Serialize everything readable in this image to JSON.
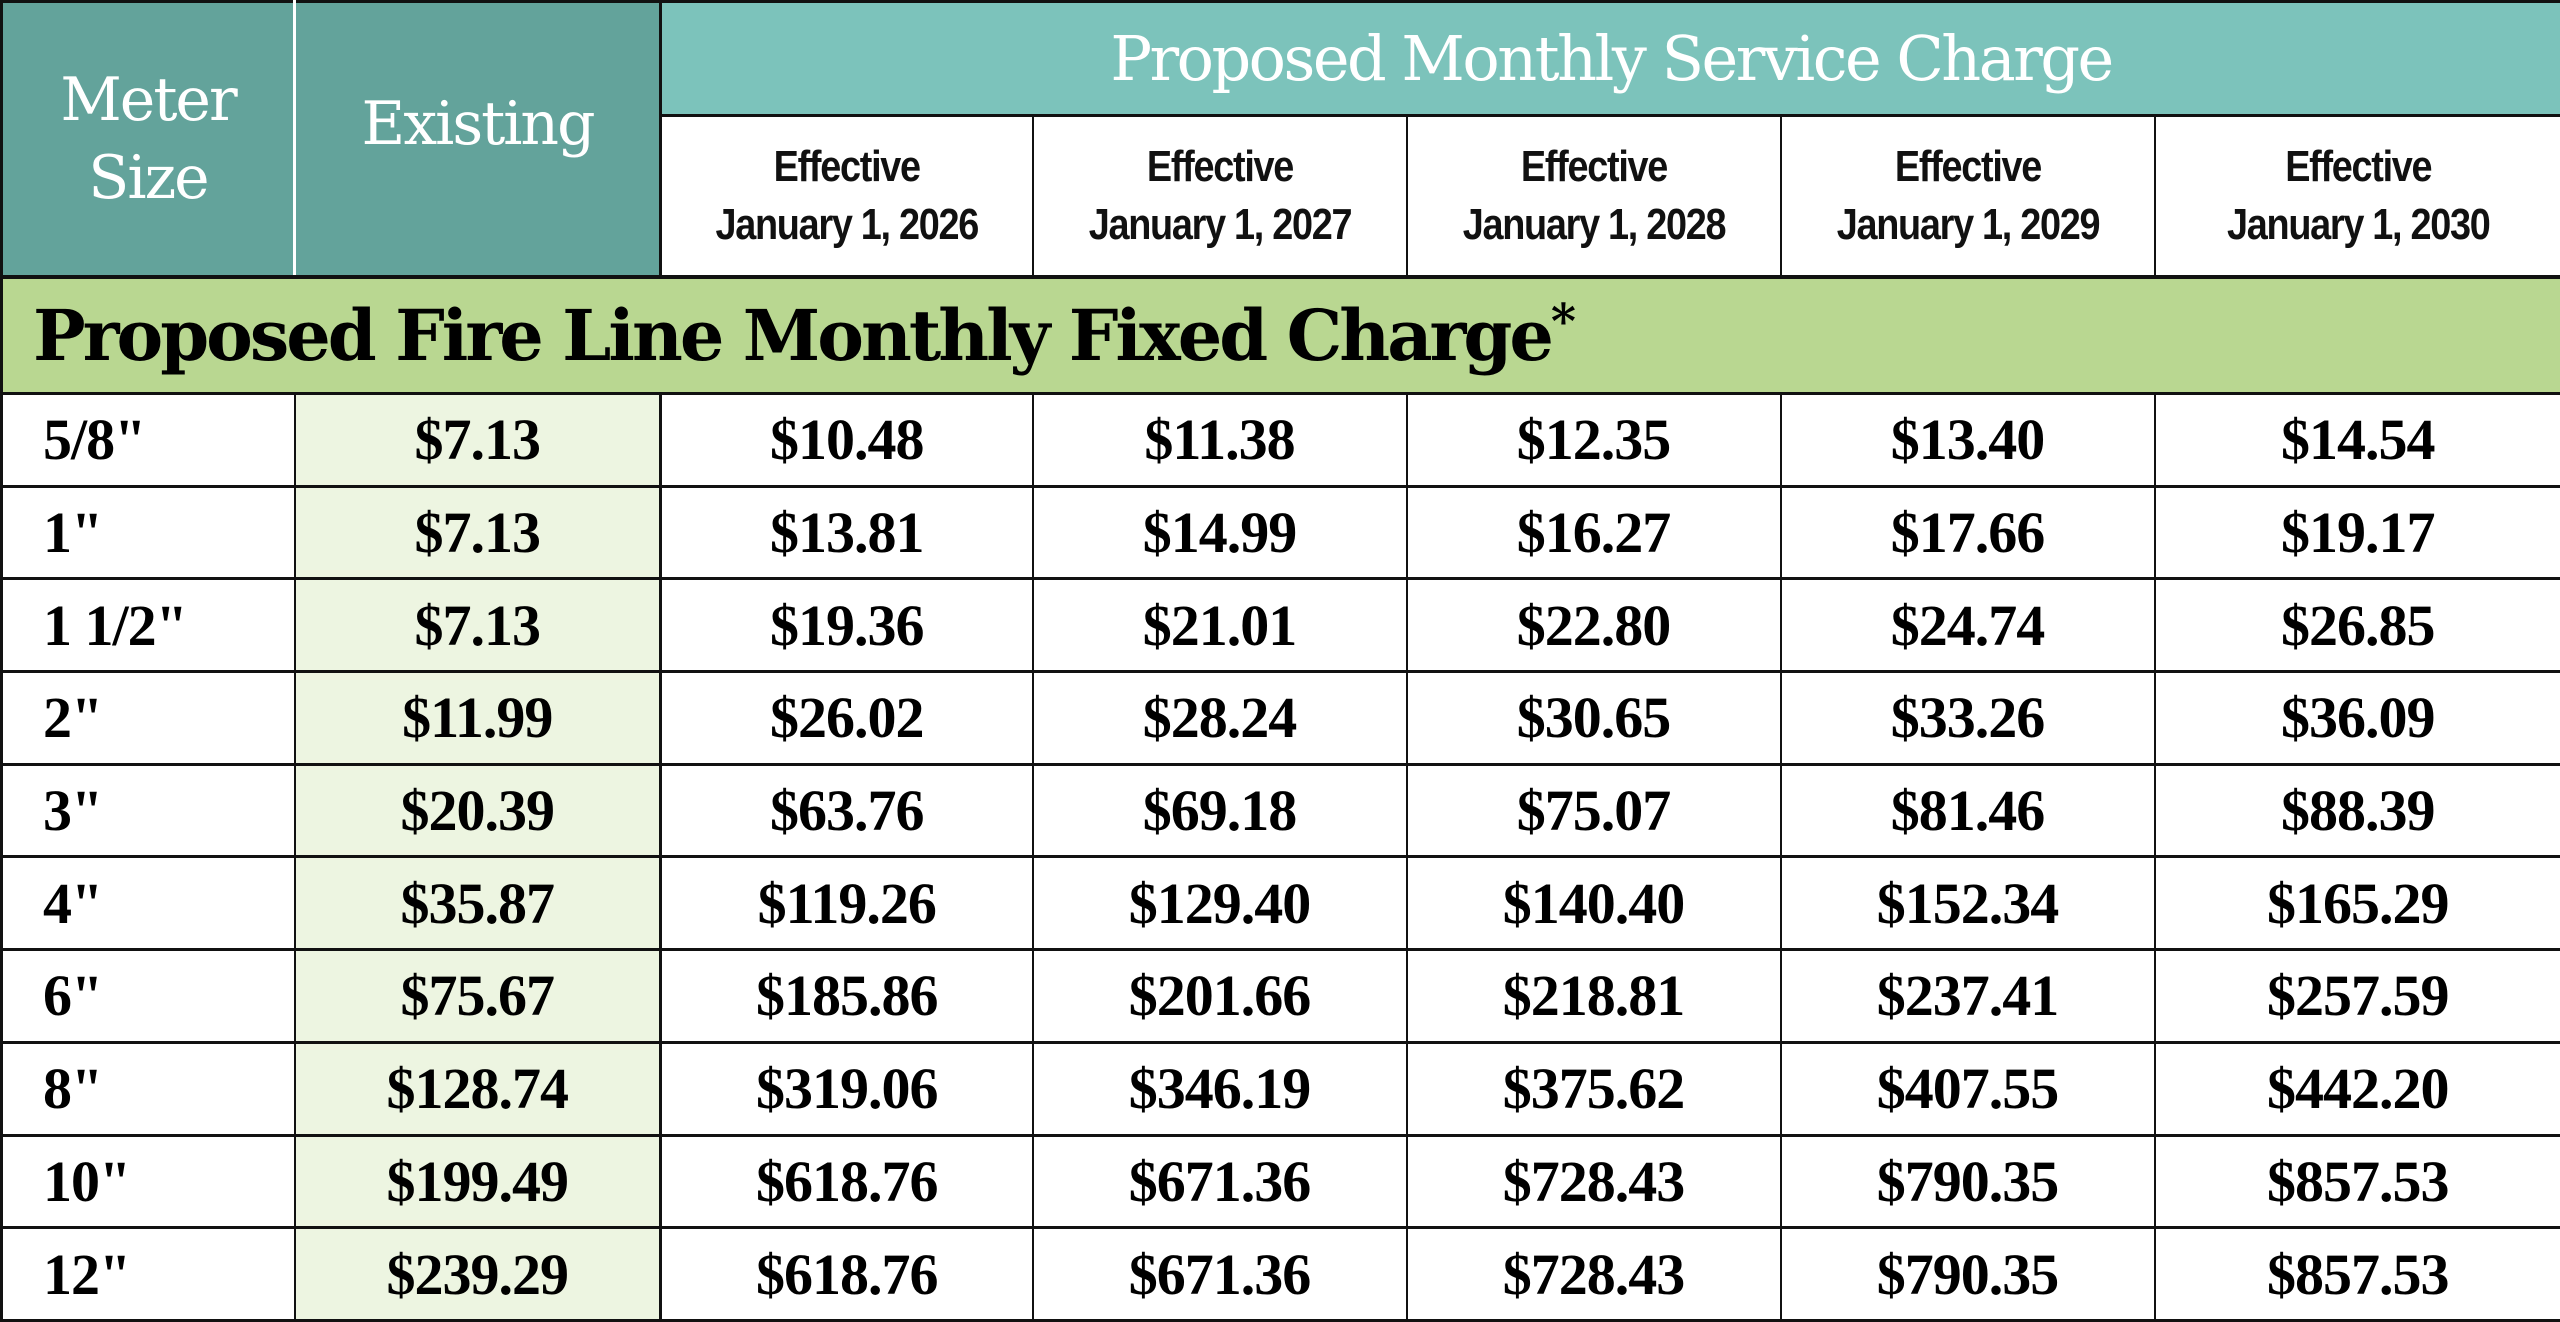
{
  "header": {
    "meter_size_line1": "Meter",
    "meter_size_line2": "Size",
    "existing": "Existing",
    "proposed_title": "Proposed Monthly Service Charge",
    "years": [
      {
        "line1": "Effective",
        "line2": "January 1, 2026"
      },
      {
        "line1": "Effective",
        "line2": "January 1, 2027"
      },
      {
        "line1": "Effective",
        "line2": "January 1, 2028"
      },
      {
        "line1": "Effective",
        "line2": "January 1, 2029"
      },
      {
        "line1": "Effective",
        "line2": "January 1, 2030"
      }
    ]
  },
  "section": {
    "title": "Proposed Fire Line Monthly Fixed Charge",
    "footnote_mark": "*"
  },
  "colors": {
    "header_dark_teal": "#63a39b",
    "header_light_teal": "#7cc3bb",
    "section_green": "#b9d791",
    "existing_column_tint": "#edf5e1",
    "border": "#111111"
  },
  "rows": [
    {
      "meter": "5/8\"",
      "existing": "$7.13",
      "y2026": "$10.48",
      "y2027": "$11.38",
      "y2028": "$12.35",
      "y2029": "$13.40",
      "y2030": "$14.54"
    },
    {
      "meter": "1\"",
      "existing": "$7.13",
      "y2026": "$13.81",
      "y2027": "$14.99",
      "y2028": "$16.27",
      "y2029": "$17.66",
      "y2030": "$19.17"
    },
    {
      "meter": "1 1/2\"",
      "existing": "$7.13",
      "y2026": "$19.36",
      "y2027": "$21.01",
      "y2028": "$22.80",
      "y2029": "$24.74",
      "y2030": "$26.85"
    },
    {
      "meter": "2\"",
      "existing": "$11.99",
      "y2026": "$26.02",
      "y2027": "$28.24",
      "y2028": "$30.65",
      "y2029": "$33.26",
      "y2030": "$36.09"
    },
    {
      "meter": "3\"",
      "existing": "$20.39",
      "y2026": "$63.76",
      "y2027": "$69.18",
      "y2028": "$75.07",
      "y2029": "$81.46",
      "y2030": "$88.39"
    },
    {
      "meter": "4\"",
      "existing": "$35.87",
      "y2026": "$119.26",
      "y2027": "$129.40",
      "y2028": "$140.40",
      "y2029": "$152.34",
      "y2030": "$165.29"
    },
    {
      "meter": "6\"",
      "existing": "$75.67",
      "y2026": "$185.86",
      "y2027": "$201.66",
      "y2028": "$218.81",
      "y2029": "$237.41",
      "y2030": "$257.59"
    },
    {
      "meter": "8\"",
      "existing": "$128.74",
      "y2026": "$319.06",
      "y2027": "$346.19",
      "y2028": "$375.62",
      "y2029": "$407.55",
      "y2030": "$442.20"
    },
    {
      "meter": "10\"",
      "existing": "$199.49",
      "y2026": "$618.76",
      "y2027": "$671.36",
      "y2028": "$728.43",
      "y2029": "$790.35",
      "y2030": "$857.53"
    },
    {
      "meter": "12\"",
      "existing": "$239.29",
      "y2026": "$618.76",
      "y2027": "$671.36",
      "y2028": "$728.43",
      "y2029": "$790.35",
      "y2030": "$857.53"
    }
  ]
}
